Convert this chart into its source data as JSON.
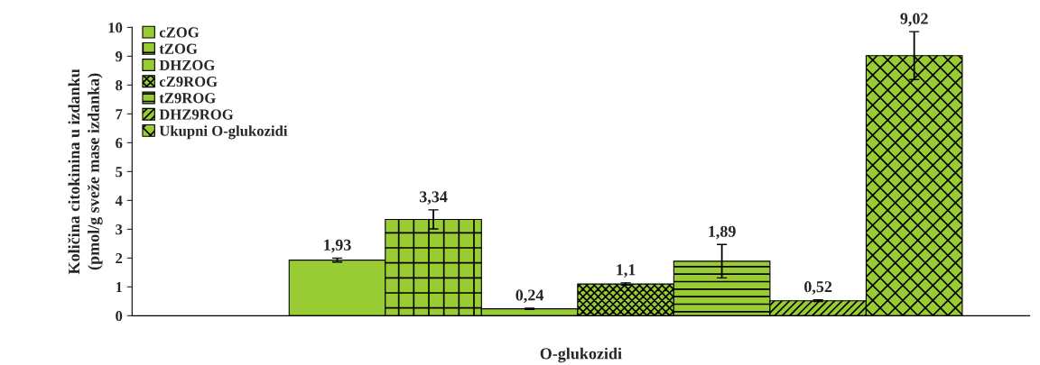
{
  "chart_data": {
    "type": "bar",
    "xlabel": "O-glukozidi",
    "ylabel": "Količina citokinina u izdanku\n(pmol/g sveže mase izdanka)",
    "categories": [
      null
    ],
    "series": [
      {
        "name": "cZOG",
        "color": "#99cc33",
        "values": [
          1.93
        ],
        "errors": [
          0.07
        ],
        "value_labels": [
          "1,93"
        ]
      },
      {
        "name": "tZOG",
        "color": "#99cc33",
        "values": [
          3.34
        ],
        "errors": [
          0.33
        ],
        "value_labels": [
          "3,34"
        ]
      },
      {
        "name": "DHZOG",
        "color": "#99cc33",
        "values": [
          0.24
        ],
        "errors": [
          0.02
        ],
        "value_labels": [
          "0,24"
        ]
      },
      {
        "name": "cZ9ROG",
        "color": "#99cc33",
        "values": [
          1.1
        ],
        "errors": [
          0.04
        ],
        "value_labels": [
          "1,1"
        ]
      },
      {
        "name": "tZ9ROG",
        "color": "#99cc33",
        "values": [
          1.89
        ],
        "errors": [
          0.58
        ],
        "value_labels": [
          "1,89"
        ]
      },
      {
        "name": "DHZ9ROG",
        "color": "#99cc33",
        "values": [
          0.52
        ],
        "errors": [
          0.03
        ],
        "value_labels": [
          "0,52"
        ]
      },
      {
        "name": "Ukupni O-glukozidi",
        "color": "#99cc33",
        "values": [
          9.02
        ],
        "errors": [
          0.83
        ],
        "value_labels": [
          "9,02"
        ]
      }
    ],
    "ylim": [
      0,
      10
    ],
    "yticks": [
      0,
      1,
      2,
      3,
      4,
      5,
      6,
      7,
      8,
      9,
      10
    ],
    "grid": false,
    "legend": "top left"
  }
}
